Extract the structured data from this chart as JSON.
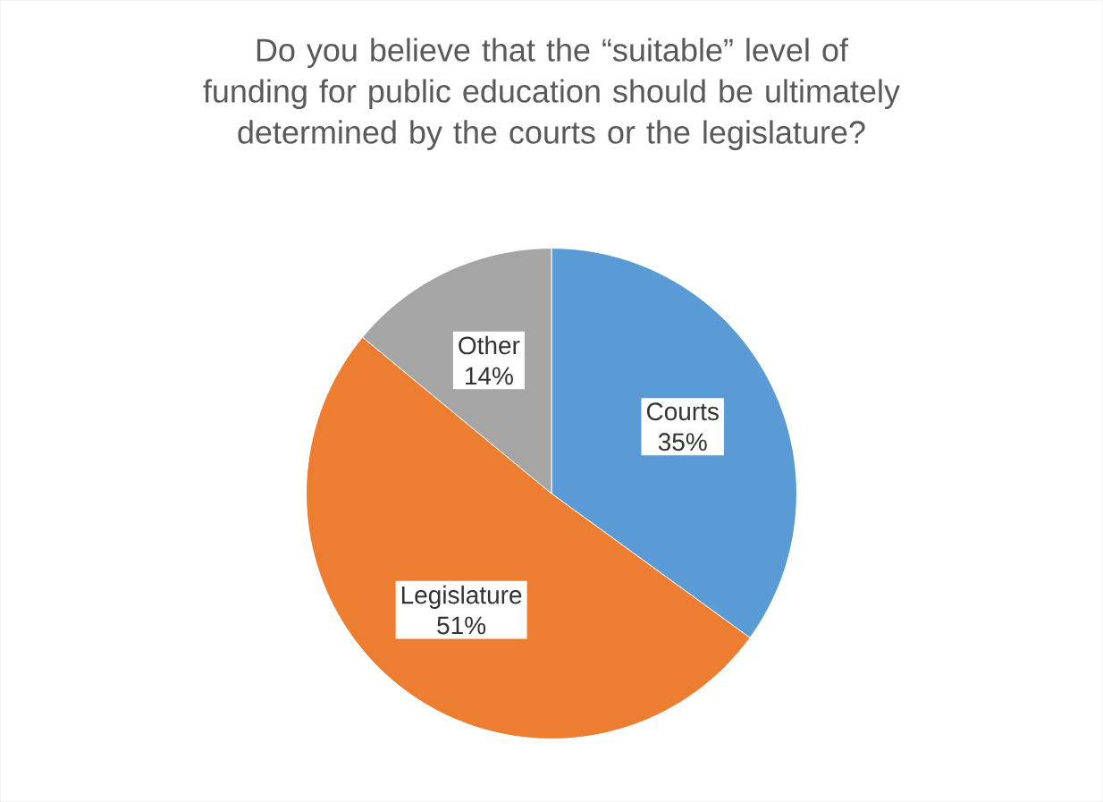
{
  "chart_data": {
    "type": "pie",
    "title": "Do you believe that the “suitable” level of funding for public education should be ultimately determined by the courts or the legislature?",
    "categories": [
      "Courts",
      "Legislature",
      "Other"
    ],
    "values": [
      35,
      51,
      14
    ],
    "value_labels": [
      "35%",
      "51%",
      "14%"
    ],
    "colors": [
      "#5b9bd5",
      "#ed7d31",
      "#a5a5a5"
    ]
  }
}
